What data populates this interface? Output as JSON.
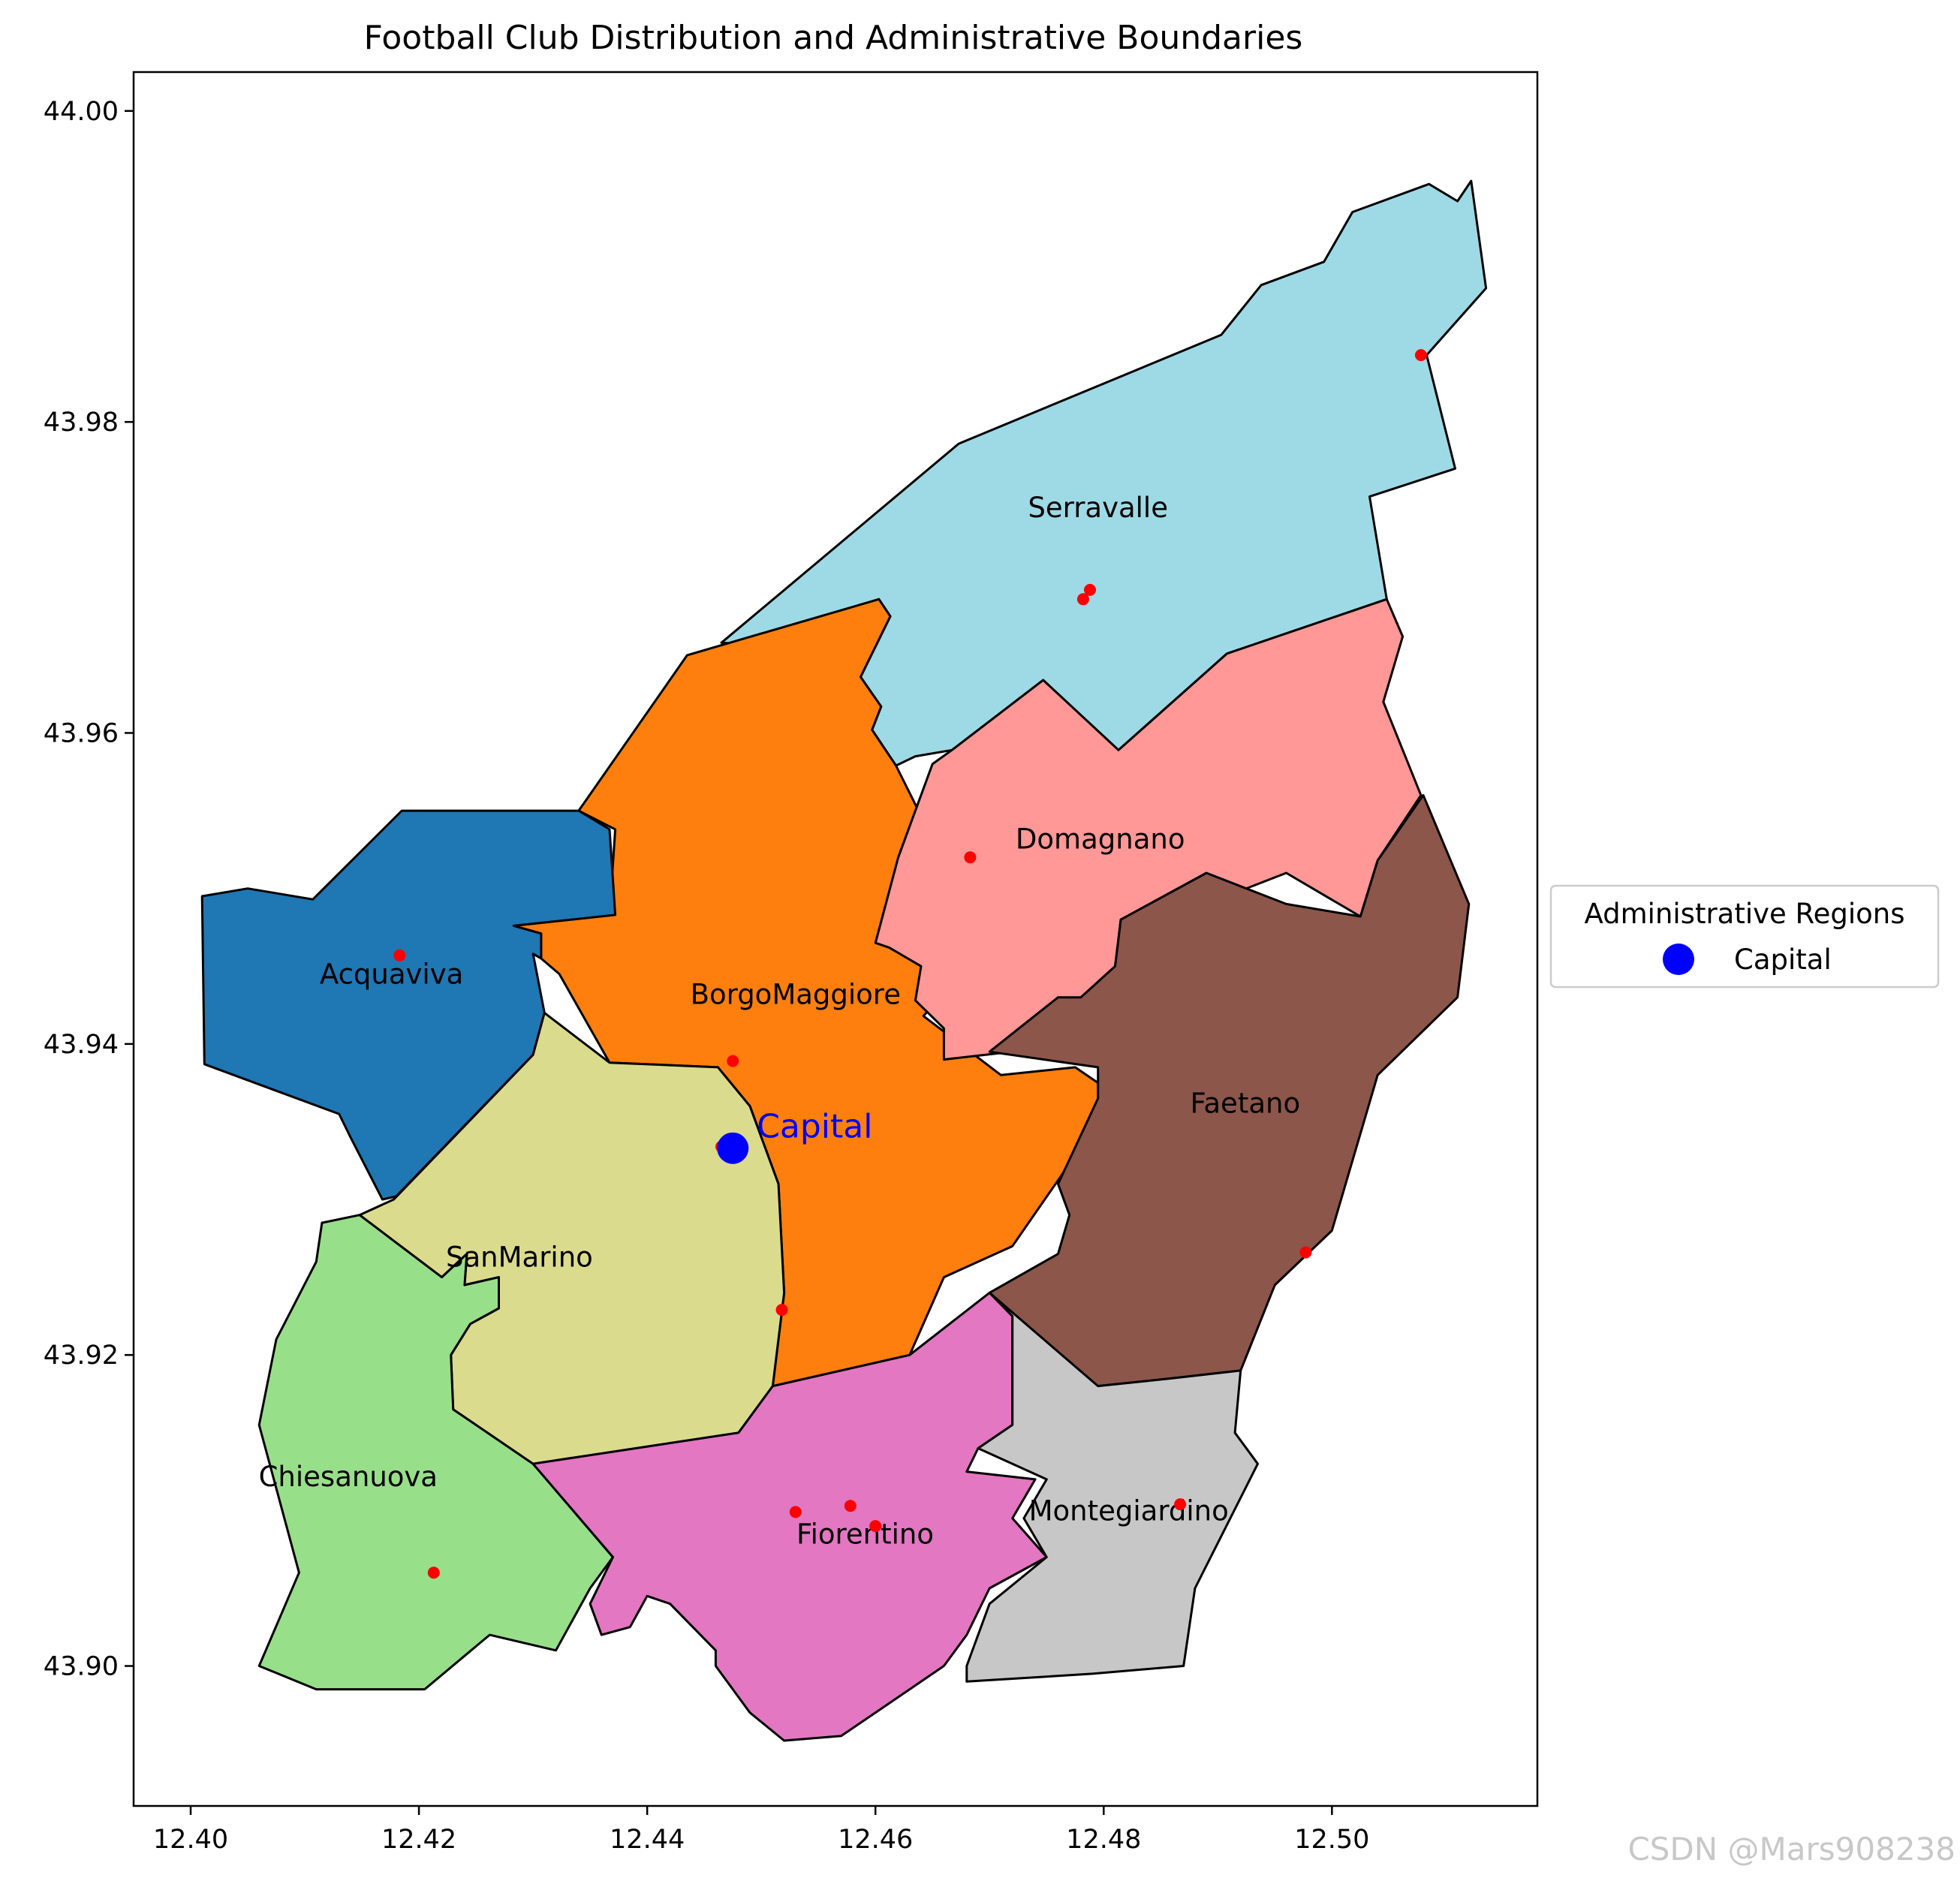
{
  "title": "Football Club Distribution and Administrative Boundaries",
  "watermark": "CSDN @Mars908238",
  "axes": {
    "xlim": [
      12.395,
      12.518
    ],
    "ylim": [
      43.891,
      44.0025
    ],
    "x_ticks": [
      12.4,
      12.42,
      12.44,
      12.46,
      12.48,
      12.5
    ],
    "x_tick_labels": [
      "12.40",
      "12.42",
      "12.44",
      "12.46",
      "12.48",
      "12.50"
    ],
    "y_ticks": [
      43.9,
      43.92,
      43.94,
      43.96,
      43.98,
      44.0
    ],
    "y_tick_labels": [
      "43.90",
      "43.92",
      "43.94",
      "43.96",
      "43.98",
      "44.00"
    ]
  },
  "legend": {
    "title": "Administrative Regions",
    "items": [
      {
        "label": "Capital",
        "color": "#0000ff"
      }
    ],
    "placement": "right-outside"
  },
  "capital": {
    "label": "Capital",
    "lon": 12.4475,
    "lat": 43.9333,
    "color": "#0000ff"
  },
  "regions": [
    {
      "name": "Serravalle",
      "color": "#9edae5",
      "label_at": [
        12.4795,
        43.9745
      ],
      "boundary": [
        [
          12.4465,
          43.9658
        ],
        [
          12.4525,
          43.9655
        ],
        [
          12.4603,
          43.9686
        ],
        [
          12.4613,
          43.9675
        ],
        [
          12.4587,
          43.9636
        ],
        [
          12.4605,
          43.9617
        ],
        [
          12.4597,
          43.9602
        ],
        [
          12.4618,
          43.9579
        ],
        [
          12.4635,
          43.9585
        ],
        [
          12.4667,
          43.9589
        ],
        [
          12.4747,
          43.9634
        ],
        [
          12.4813,
          43.9589
        ],
        [
          12.4908,
          43.9651
        ],
        [
          12.5048,
          43.9686
        ],
        [
          12.5033,
          43.9752
        ],
        [
          12.5108,
          43.977
        ],
        [
          12.5083,
          43.9843
        ],
        [
          12.5135,
          43.9886
        ],
        [
          12.5122,
          43.9955
        ],
        [
          12.511,
          43.9942
        ],
        [
          12.5085,
          43.9953
        ],
        [
          12.5018,
          43.9935
        ],
        [
          12.4993,
          43.9903
        ],
        [
          12.4938,
          43.9888
        ],
        [
          12.4903,
          43.9856
        ],
        [
          12.4673,
          43.9786
        ]
      ]
    },
    {
      "name": "BorgoMaggiore",
      "color": "#ff7f0e",
      "label_at": [
        12.453,
        43.9432
      ],
      "boundary": [
        [
          12.4435,
          43.965
        ],
        [
          12.4603,
          43.9686
        ],
        [
          12.4613,
          43.9675
        ],
        [
          12.4587,
          43.9636
        ],
        [
          12.4605,
          43.9617
        ],
        [
          12.4597,
          43.9602
        ],
        [
          12.4618,
          43.9579
        ],
        [
          12.465,
          43.9532
        ],
        [
          12.4642,
          43.9462
        ],
        [
          12.466,
          43.945
        ],
        [
          12.468,
          43.945
        ],
        [
          12.4642,
          43.9418
        ],
        [
          12.471,
          43.938
        ],
        [
          12.4775,
          43.9385
        ],
        [
          12.4805,
          43.937
        ],
        [
          12.4805,
          43.936
        ],
        [
          12.472,
          43.927
        ],
        [
          12.466,
          43.925
        ],
        [
          12.463,
          43.92
        ],
        [
          12.455,
          43.918
        ],
        [
          12.451,
          43.918
        ],
        [
          12.452,
          43.924
        ],
        [
          12.4515,
          43.931
        ],
        [
          12.449,
          43.936
        ],
        [
          12.4462,
          43.9385
        ],
        [
          12.4367,
          43.9388
        ],
        [
          12.4323,
          43.9445
        ],
        [
          12.4307,
          43.9455
        ],
        [
          12.4307,
          43.9471
        ],
        [
          12.4283,
          43.9476
        ],
        [
          12.4367,
          43.9483
        ],
        [
          12.4372,
          43.9538
        ],
        [
          12.434,
          43.955
        ]
      ]
    },
    {
      "name": "Acquaviva",
      "color": "#1f77b4",
      "label_at": [
        12.4176,
        43.9445
      ],
      "boundary": [
        [
          12.401,
          43.9495
        ],
        [
          12.405,
          43.95
        ],
        [
          12.4107,
          43.9493
        ],
        [
          12.4185,
          43.955
        ],
        [
          12.434,
          43.955
        ],
        [
          12.4367,
          43.9538
        ],
        [
          12.4372,
          43.9483
        ],
        [
          12.4283,
          43.9476
        ],
        [
          12.4307,
          43.9471
        ],
        [
          12.4307,
          43.9455
        ],
        [
          12.43,
          43.9458
        ],
        [
          12.431,
          43.942
        ],
        [
          12.43,
          43.9393
        ],
        [
          12.418,
          43.9302
        ],
        [
          12.4168,
          43.93
        ],
        [
          12.414,
          43.934
        ],
        [
          12.413,
          43.9355
        ],
        [
          12.4012,
          43.9387
        ]
      ]
    },
    {
      "name": "Domagnano",
      "color": "#ff9896",
      "label_at": [
        12.4797,
        43.9532
      ],
      "boundary": [
        [
          12.465,
          43.958
        ],
        [
          12.4667,
          43.9589
        ],
        [
          12.4747,
          43.9634
        ],
        [
          12.4813,
          43.9589
        ],
        [
          12.4908,
          43.9651
        ],
        [
          12.5048,
          43.9686
        ],
        [
          12.5062,
          43.9662
        ],
        [
          12.5045,
          43.962
        ],
        [
          12.5078,
          43.956
        ],
        [
          12.504,
          43.9518
        ],
        [
          12.5025,
          43.9482
        ],
        [
          12.496,
          43.951
        ],
        [
          12.489,
          43.949
        ],
        [
          12.4815,
          43.948
        ],
        [
          12.481,
          43.945
        ],
        [
          12.478,
          43.943
        ],
        [
          12.478,
          43.94
        ],
        [
          12.466,
          43.939
        ],
        [
          12.466,
          43.941
        ],
        [
          12.4635,
          43.9428
        ],
        [
          12.464,
          43.945
        ],
        [
          12.4612,
          43.9462
        ],
        [
          12.46,
          43.9465
        ],
        [
          12.462,
          43.952
        ]
      ]
    },
    {
      "name": "Faetano",
      "color": "#8c564b",
      "label_at": [
        12.4924,
        43.9362
      ],
      "boundary": [
        [
          12.508,
          43.956
        ],
        [
          12.512,
          43.949
        ],
        [
          12.511,
          43.943
        ],
        [
          12.504,
          43.938
        ],
        [
          12.5,
          43.928
        ],
        [
          12.495,
          43.9245
        ],
        [
          12.492,
          43.919
        ],
        [
          12.486,
          43.9185
        ],
        [
          12.4795,
          43.918
        ],
        [
          12.4755,
          43.9178
        ],
        [
          12.472,
          43.921
        ],
        [
          12.47,
          43.924
        ],
        [
          12.476,
          43.9265
        ],
        [
          12.477,
          43.929
        ],
        [
          12.476,
          43.931
        ],
        [
          12.4795,
          43.9365
        ],
        [
          12.4795,
          43.9385
        ],
        [
          12.47,
          43.9395
        ],
        [
          12.476,
          43.943
        ],
        [
          12.478,
          43.943
        ],
        [
          12.481,
          43.945
        ],
        [
          12.4815,
          43.948
        ],
        [
          12.489,
          43.951
        ],
        [
          12.496,
          43.949
        ],
        [
          12.5025,
          43.9482
        ],
        [
          12.504,
          43.9518
        ]
      ]
    },
    {
      "name": "SanMarino",
      "color": "#dbdb8d",
      "label_at": [
        12.4288,
        43.9263
      ],
      "boundary": [
        [
          12.4178,
          43.93
        ],
        [
          12.43,
          43.9393
        ],
        [
          12.431,
          43.942
        ],
        [
          12.4367,
          43.9388
        ],
        [
          12.4462,
          43.9385
        ],
        [
          12.449,
          43.936
        ],
        [
          12.4515,
          43.931
        ],
        [
          12.452,
          43.924
        ],
        [
          12.451,
          43.918
        ],
        [
          12.448,
          43.915
        ],
        [
          12.43,
          43.913
        ],
        [
          12.423,
          43.9165
        ],
        [
          12.4228,
          43.92
        ],
        [
          12.4245,
          43.922
        ],
        [
          12.427,
          43.923
        ],
        [
          12.427,
          43.925
        ],
        [
          12.424,
          43.9245
        ],
        [
          12.4242,
          43.9265
        ],
        [
          12.422,
          43.925
        ],
        [
          12.4148,
          43.929
        ]
      ]
    },
    {
      "name": "Chiesanuova",
      "color": "#98df8a",
      "label_at": [
        12.4138,
        43.9122
      ],
      "boundary": [
        [
          12.4115,
          43.9285
        ],
        [
          12.4148,
          43.929
        ],
        [
          12.422,
          43.925
        ],
        [
          12.4242,
          43.9265
        ],
        [
          12.424,
          43.9245
        ],
        [
          12.427,
          43.925
        ],
        [
          12.427,
          43.923
        ],
        [
          12.4245,
          43.922
        ],
        [
          12.4228,
          43.92
        ],
        [
          12.423,
          43.9165
        ],
        [
          12.43,
          43.913
        ],
        [
          12.437,
          43.907
        ],
        [
          12.435,
          43.905
        ],
        [
          12.432,
          43.901
        ],
        [
          12.4262,
          43.902
        ],
        [
          12.4205,
          43.8985
        ],
        [
          12.411,
          43.8985
        ],
        [
          12.406,
          43.9
        ],
        [
          12.4095,
          43.906
        ],
        [
          12.406,
          43.9155
        ],
        [
          12.4075,
          43.921
        ],
        [
          12.411,
          43.926
        ]
      ]
    },
    {
      "name": "Fiorentino",
      "color": "#e377c2",
      "label_at": [
        12.4591,
        43.9085
      ],
      "boundary": [
        [
          12.43,
          43.913
        ],
        [
          12.448,
          43.915
        ],
        [
          12.451,
          43.918
        ],
        [
          12.463,
          43.92
        ],
        [
          12.47,
          43.924
        ],
        [
          12.472,
          43.9225
        ],
        [
          12.472,
          43.9155
        ],
        [
          12.469,
          43.914
        ],
        [
          12.468,
          43.9125
        ],
        [
          12.474,
          43.912
        ],
        [
          12.472,
          43.9095
        ],
        [
          12.475,
          43.907
        ],
        [
          12.47,
          43.905
        ],
        [
          12.468,
          43.902
        ],
        [
          12.466,
          43.9
        ],
        [
          12.462,
          43.898
        ],
        [
          12.46,
          43.897
        ],
        [
          12.457,
          43.8955
        ],
        [
          12.452,
          43.8952
        ],
        [
          12.449,
          43.897
        ],
        [
          12.446,
          43.9
        ],
        [
          12.446,
          43.901
        ],
        [
          12.442,
          43.904
        ],
        [
          12.44,
          43.9045
        ],
        [
          12.4385,
          43.9025
        ],
        [
          12.436,
          43.902
        ],
        [
          12.435,
          43.904
        ],
        [
          12.437,
          43.907
        ]
      ]
    },
    {
      "name": "Montegiardino",
      "color": "#c7c7c7",
      "label_at": [
        12.4822,
        43.91
      ],
      "boundary": [
        [
          12.47,
          43.924
        ],
        [
          12.4795,
          43.918
        ],
        [
          12.486,
          43.9185
        ],
        [
          12.492,
          43.919
        ],
        [
          12.4915,
          43.915
        ],
        [
          12.4935,
          43.913
        ],
        [
          12.488,
          43.905
        ],
        [
          12.487,
          43.9
        ],
        [
          12.479,
          43.8995
        ],
        [
          12.468,
          43.899
        ],
        [
          12.468,
          43.9
        ],
        [
          12.47,
          43.904
        ],
        [
          12.475,
          43.907
        ],
        [
          12.473,
          43.9095
        ],
        [
          12.475,
          43.912
        ],
        [
          12.469,
          43.914
        ],
        [
          12.472,
          43.9155
        ],
        [
          12.472,
          43.9225
        ]
      ]
    }
  ],
  "clubs": [
    {
      "lon": 12.5078,
      "lat": 43.9843
    },
    {
      "lon": 12.4788,
      "lat": 43.9692
    },
    {
      "lon": 12.4782,
      "lat": 43.9686
    },
    {
      "lon": 12.4683,
      "lat": 43.952
    },
    {
      "lon": 12.4183,
      "lat": 43.9457
    },
    {
      "lon": 12.4475,
      "lat": 43.9389
    },
    {
      "lon": 12.4465,
      "lat": 43.9334
    },
    {
      "lon": 12.4518,
      "lat": 43.9229
    },
    {
      "lon": 12.4977,
      "lat": 43.9266
    },
    {
      "lon": 12.453,
      "lat": 43.9099
    },
    {
      "lon": 12.4578,
      "lat": 43.9103
    },
    {
      "lon": 12.46,
      "lat": 43.909
    },
    {
      "lon": 12.4867,
      "lat": 43.9104
    },
    {
      "lon": 12.4213,
      "lat": 43.906
    }
  ]
}
